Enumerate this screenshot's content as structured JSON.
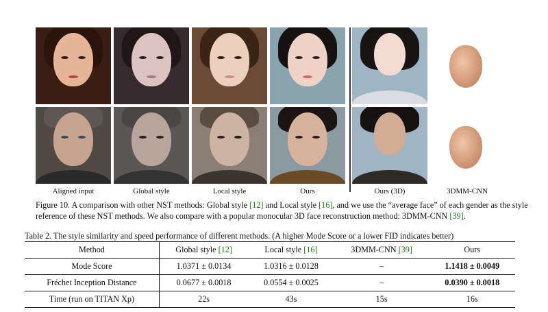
{
  "figure": {
    "column_labels": [
      "Aligned input",
      "Global style",
      "Local style",
      "Ours",
      "Ours (3D)",
      "3DMM-CNN"
    ],
    "caption": {
      "prefix": "Figure 10. A comparison with other NST methods: Global style ",
      "ref1": "[12]",
      "mid1": " and Local style ",
      "ref2": "[16]",
      "mid2": ", and we use the “average face” of each gender as the style reference of these NST methods. We also compare with a popular monocular 3D face reconstruction method: 3DMM-CNN ",
      "ref3": "[39]",
      "suffix": "."
    }
  },
  "table": {
    "caption": "Table 2. The style similarity and speed performance of different methods. (A higher Mode Score or a lower FID indicates better)",
    "headers": {
      "method": "Method",
      "global": "Global style",
      "global_ref": "[12]",
      "local": "Local style",
      "local_ref": "[16]",
      "cnn": "3DMM-CNN",
      "cnn_ref": "[39]",
      "ours": "Ours"
    },
    "rows": [
      {
        "method": "Mode Score",
        "global": "1.0371 ± 0.0134",
        "local": "1.0316 ± 0.0128",
        "cnn": "–",
        "ours": "1.1418 ± 0.0049"
      },
      {
        "method": "Fréchet Inception Distance",
        "global": "0.0677 ± 0.0018",
        "local": "0.0554 ± 0.0025",
        "cnn": "–",
        "ours": "0.0390 ± 0.0018"
      },
      {
        "method": "Time (run on TITAN Xp)",
        "global": "22s",
        "local": "43s",
        "cnn": "15s",
        "ours": "16s"
      }
    ]
  }
}
